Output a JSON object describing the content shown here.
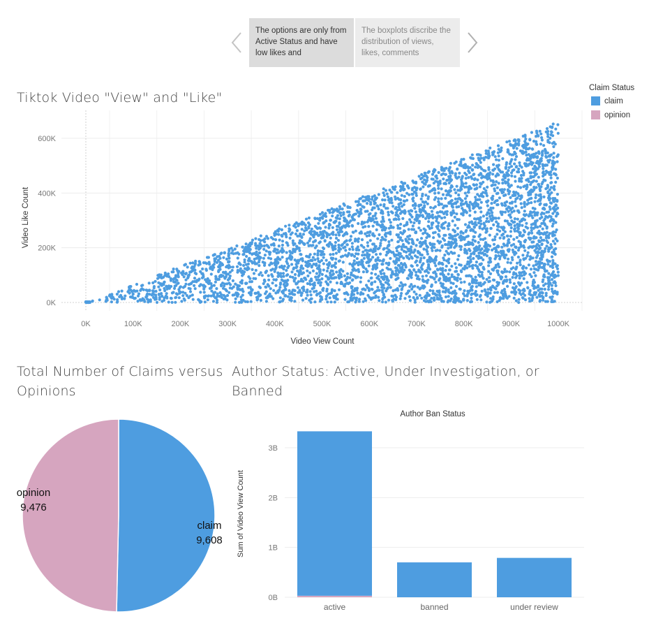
{
  "story": {
    "points": [
      "The options are only from Active Status and have low likes and",
      "The boxplots discribe the distribution of views, likes, comments"
    ]
  },
  "legend": {
    "title": "Claim Status",
    "items": [
      {
        "label": "claim",
        "color": "#4e9de0"
      },
      {
        "label": "opinion",
        "color": "#d6a5bf"
      }
    ]
  },
  "scatter": {
    "title": "Tiktok Video \"View\" and \"Like\""
  },
  "pie": {
    "title": "Total Number of Claims versus Opinions"
  },
  "bar": {
    "title": "Author Status: Active, Under Investigation, or Banned"
  },
  "chart_data": [
    {
      "type": "scatter",
      "title": "Tiktok Video \"View\" and \"Like\"",
      "xlabel": "Video View Count",
      "ylabel": "Video Like Count",
      "xlim": [
        0,
        1000000
      ],
      "ylim": [
        0,
        650000
      ],
      "xticks": [
        "0K",
        "100K",
        "200K",
        "300K",
        "400K",
        "500K",
        "600K",
        "700K",
        "800K",
        "900K",
        "1000K"
      ],
      "xtick_values": [
        0,
        100000,
        200000,
        300000,
        400000,
        500000,
        600000,
        700000,
        800000,
        900000,
        1000000
      ],
      "yticks": [
        "0K",
        "200K",
        "400K",
        "600K"
      ],
      "ytick_values": [
        0,
        200000,
        400000,
        600000
      ],
      "series": [
        {
          "name": "claim",
          "color": "#4e9de0",
          "relation": "likes between 0 and about 0.66 × views",
          "x_range": [
            0,
            1000000
          ],
          "y_max_ratio": 0.66
        },
        {
          "name": "opinion",
          "color": "#d6a5bf",
          "relation": "clustered near origin",
          "x_range": [
            0,
            10000
          ]
        }
      ],
      "grid": true
    },
    {
      "type": "pie",
      "title": "Total Number of Claims versus Opinions",
      "slices": [
        {
          "label": "claim",
          "value": 9608,
          "display": "9,608",
          "color": "#4e9de0"
        },
        {
          "label": "opinion",
          "value": 9476,
          "display": "9,476",
          "color": "#d6a5bf"
        }
      ]
    },
    {
      "type": "bar",
      "title": "Author Status: Active, Under Investigation, or Banned",
      "header": "Author Ban Status",
      "ylabel": "Sum of Video View Count",
      "categories": [
        "active",
        "banned",
        "under review"
      ],
      "series": [
        {
          "name": "claim",
          "color": "#4e9de0",
          "values": [
            3.3,
            0.7,
            0.79
          ]
        },
        {
          "name": "opinion",
          "color": "#d6a5bf",
          "values": [
            0.03,
            0.0,
            0.0
          ]
        }
      ],
      "unit": "B",
      "ylim": [
        0,
        3.35
      ],
      "yticks": [
        "0B",
        "1B",
        "2B",
        "3B"
      ],
      "ytick_values": [
        0,
        1,
        2,
        3
      ],
      "grid": true
    }
  ]
}
